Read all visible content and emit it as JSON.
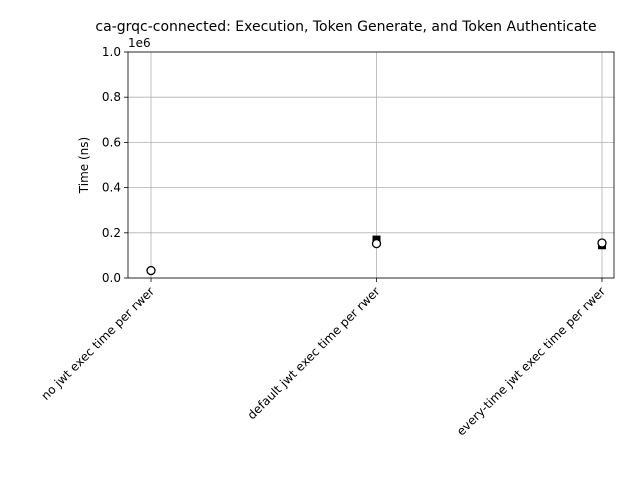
{
  "chart_data": {
    "type": "scatter",
    "title": "ca-grqc-connected: Execution, Token Generate, and Token Authenticate",
    "xlabel": "",
    "ylabel": "Time (ns)",
    "ylim": [
      0,
      1000000
    ],
    "y_ticks": [
      0,
      200000,
      400000,
      600000,
      800000,
      1000000
    ],
    "y_tick_labels": [
      "0.0",
      "0.2",
      "0.4",
      "0.6",
      "0.8",
      "1.0"
    ],
    "y_offset_label": "1e6",
    "categories": [
      "no jwt exec time per rwer",
      "default jwt exec time per rwer",
      "every-time jwt exec time per rwer"
    ],
    "grid": true,
    "series": [
      {
        "marker": "square",
        "color": "#000000",
        "values": [
          null,
          170000,
          145000
        ]
      },
      {
        "marker": "open-circle",
        "color": "#000000",
        "values": [
          33000,
          152000,
          155000
        ]
      }
    ]
  }
}
